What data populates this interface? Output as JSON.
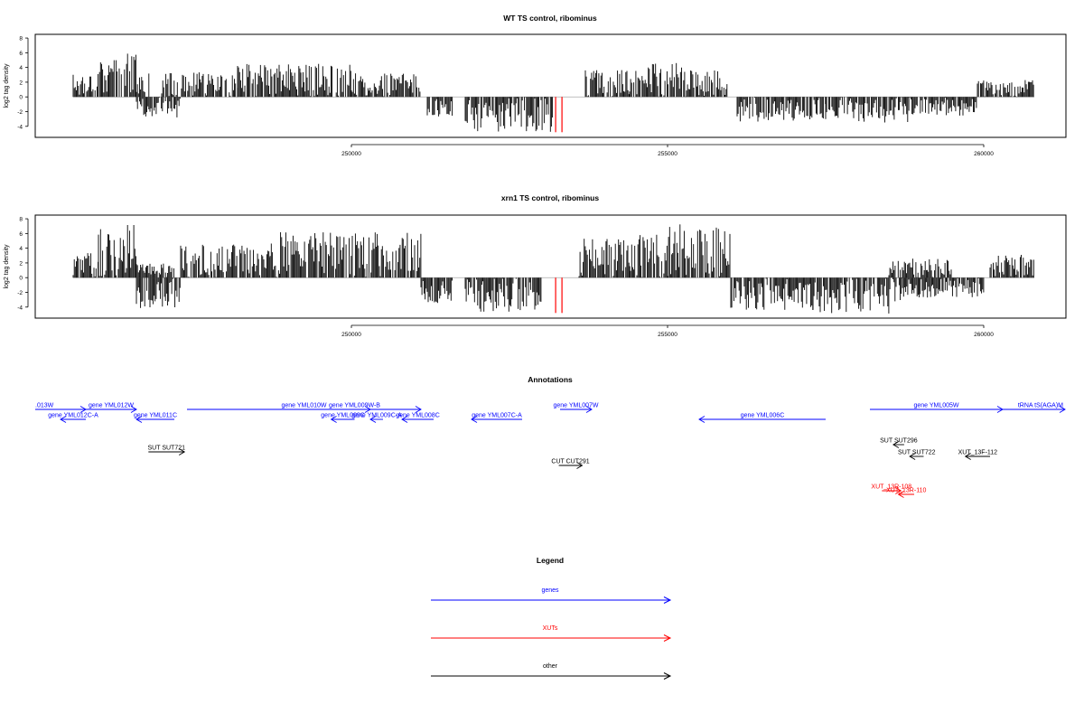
{
  "chart_data": [
    {
      "type": "bar",
      "title": "WT TS control, ribominus",
      "xlabel": "",
      "ylabel": "log2 tag density",
      "xlim": [
        245000,
        261300
      ],
      "ylim": [
        -5.5,
        8.5
      ],
      "x_ticks": [
        250000,
        255000,
        260000
      ],
      "x_tick_labels": [
        "250000",
        "255000",
        "260000"
      ],
      "y_ticks": [
        -4,
        -2,
        0,
        2,
        4,
        6,
        8
      ],
      "y_tick_labels": [
        "-4",
        "-2",
        "0",
        "2",
        "4",
        "6",
        "8"
      ],
      "baseline": 0,
      "plus_strand_regions": [
        {
          "start": 245600,
          "end": 246000,
          "max": 3.6
        },
        {
          "start": 246000,
          "end": 246600,
          "max": 5.9
        },
        {
          "start": 246600,
          "end": 246800,
          "max": 3.5
        },
        {
          "start": 247000,
          "end": 248200,
          "max": 3.4
        },
        {
          "start": 248200,
          "end": 250000,
          "max": 4.5
        },
        {
          "start": 250000,
          "end": 251100,
          "max": 3.2
        },
        {
          "start": 253700,
          "end": 254400,
          "max": 3.8
        },
        {
          "start": 254400,
          "end": 255300,
          "max": 4.8
        },
        {
          "start": 255300,
          "end": 255950,
          "max": 3.6
        },
        {
          "start": 259900,
          "end": 260800,
          "max": 2.3
        }
      ],
      "minus_strand_regions": [
        {
          "start": 246600,
          "end": 247300,
          "max": 2.8
        },
        {
          "start": 251200,
          "end": 251600,
          "max": 2.8
        },
        {
          "start": 251800,
          "end": 253200,
          "max": 4.8
        },
        {
          "start": 256100,
          "end": 257500,
          "max": 3.4
        },
        {
          "start": 257500,
          "end": 258800,
          "max": 3.5
        },
        {
          "start": 258800,
          "end": 259900,
          "max": 2.6
        }
      ],
      "highlighted_bars": [
        {
          "x": 253230,
          "value": -4.8,
          "color": "#ff0000"
        },
        {
          "x": 253330,
          "value": -4.8,
          "color": "#ff0000"
        }
      ],
      "colors": {
        "bars": "#000000",
        "baseline": "#aaaaaa",
        "highlight": "#ff0000"
      }
    },
    {
      "type": "bar",
      "title": "xrn1 TS control, ribominus",
      "xlabel": "",
      "ylabel": "log2 tag density",
      "xlim": [
        245000,
        261300
      ],
      "ylim": [
        -5.5,
        8.5
      ],
      "x_ticks": [
        250000,
        255000,
        260000
      ],
      "x_tick_labels": [
        "250000",
        "255000",
        "260000"
      ],
      "y_ticks": [
        -4,
        -2,
        0,
        2,
        4,
        6,
        8
      ],
      "y_tick_labels": [
        "-4",
        "-2",
        "0",
        "2",
        "4",
        "6",
        "8"
      ],
      "baseline": 0,
      "plus_strand_regions": [
        {
          "start": 245600,
          "end": 246000,
          "max": 3.6
        },
        {
          "start": 246000,
          "end": 246600,
          "max": 7.5
        },
        {
          "start": 246600,
          "end": 247200,
          "max": 2.0
        },
        {
          "start": 247300,
          "end": 248700,
          "max": 4.5
        },
        {
          "start": 248700,
          "end": 251100,
          "max": 6.2
        },
        {
          "start": 253600,
          "end": 254400,
          "max": 5.5
        },
        {
          "start": 254400,
          "end": 255000,
          "max": 6.2
        },
        {
          "start": 255000,
          "end": 256000,
          "max": 7.3
        },
        {
          "start": 258500,
          "end": 259500,
          "max": 2.6
        },
        {
          "start": 260100,
          "end": 260800,
          "max": 3.1
        }
      ],
      "minus_strand_regions": [
        {
          "start": 246600,
          "end": 247300,
          "max": 4.2
        },
        {
          "start": 251100,
          "end": 251600,
          "max": 3.6
        },
        {
          "start": 251800,
          "end": 253000,
          "max": 4.7
        },
        {
          "start": 256000,
          "end": 257300,
          "max": 4.4
        },
        {
          "start": 257300,
          "end": 258700,
          "max": 4.9
        },
        {
          "start": 258700,
          "end": 260000,
          "max": 2.7
        }
      ],
      "highlighted_bars": [
        {
          "x": 253230,
          "value": -4.8,
          "color": "#ff0000"
        },
        {
          "x": 253330,
          "value": -4.8,
          "color": "#ff0000"
        }
      ],
      "colors": {
        "bars": "#000000",
        "baseline": "#aaaaaa",
        "highlight": "#ff0000"
      }
    }
  ],
  "annotations": {
    "title": "Annotations",
    "xlim": [
      245000,
      261300
    ],
    "features": [
      {
        "label": ".013W",
        "start": 245000,
        "end": 245800,
        "strand": "+",
        "row": 0,
        "color": "#0000ff",
        "label_side": "left"
      },
      {
        "label": "gene YML012W",
        "start": 245800,
        "end": 246600,
        "strand": "+",
        "row": 0,
        "color": "#0000ff"
      },
      {
        "label": "gene YML012C-A",
        "start": 245400,
        "end": 245800,
        "strand": "-",
        "row": 1,
        "color": "#0000ff"
      },
      {
        "label": "gene YML011C",
        "start": 246600,
        "end": 247200,
        "strand": "-",
        "row": 1,
        "color": "#0000ff"
      },
      {
        "label": "gene YML010W",
        "start": 247400,
        "end": 251100,
        "strand": "+",
        "row": 0,
        "color": "#0000ff"
      },
      {
        "label": "gene YML009W-B",
        "start": 249800,
        "end": 250300,
        "strand": "+",
        "row": 0,
        "color": "#0000ff"
      },
      {
        "label": "gene YML009C",
        "start": 249680,
        "end": 250050,
        "strand": "-",
        "row": 1,
        "color": "#0000ff"
      },
      {
        "label": "gene YML009C-A",
        "start": 250300,
        "end": 250500,
        "strand": "-",
        "row": 1,
        "color": "#0000ff"
      },
      {
        "label": "gene YML008C",
        "start": 250800,
        "end": 251300,
        "strand": "-",
        "row": 1,
        "color": "#0000ff"
      },
      {
        "label": "gene YML007C-A",
        "start": 251900,
        "end": 252700,
        "strand": "-",
        "row": 1,
        "color": "#0000ff"
      },
      {
        "label": "gene YML007W",
        "start": 253300,
        "end": 253800,
        "strand": "+",
        "row": 0,
        "color": "#0000ff"
      },
      {
        "label": "gene YML006C",
        "start": 255500,
        "end": 257500,
        "strand": "-",
        "row": 1,
        "color": "#0000ff"
      },
      {
        "label": "gene YML005W",
        "start": 258200,
        "end": 260300,
        "strand": "+",
        "row": 0,
        "color": "#0000ff"
      },
      {
        "label": "tRNA tS(AGA)M",
        "start": 259930,
        "end": 261300,
        "strand": "+",
        "row": 0,
        "color": "#0000ff",
        "label_side": "right"
      },
      {
        "label": "SUT SUT296",
        "start": 258570,
        "end": 258640,
        "strand": "-",
        "row": 3,
        "color": "#000000"
      },
      {
        "label": "CUT CUT291",
        "start": 253280,
        "end": 253650,
        "strand": "+",
        "row": 4,
        "color": "#000000"
      },
      {
        "label": "SUT SUT721",
        "start": 246790,
        "end": 247360,
        "strand": "+",
        "row": 6,
        "color": "#000000"
      },
      {
        "label": "SUT SUT722",
        "start": 258830,
        "end": 259050,
        "strand": "-",
        "row": 5,
        "color": "#000000"
      },
      {
        "label": "XUT_13F-112",
        "start": 259710,
        "end": 260100,
        "strand": "-",
        "row": 5,
        "color": "#000000"
      },
      {
        "label": "XUT_13R-108",
        "start": 258390,
        "end": 258690,
        "strand": "+",
        "row": 7,
        "color": "#ff0000"
      },
      {
        "label": "XUT_13R-110",
        "start": 258650,
        "end": 258900,
        "strand": "-",
        "row": 8,
        "color": "#ff0000"
      }
    ]
  },
  "legend": {
    "title": "Legend",
    "items": [
      {
        "label": "genes",
        "color": "#0000ff"
      },
      {
        "label": "XUTs",
        "color": "#ff0000"
      },
      {
        "label": "other",
        "color": "#000000"
      }
    ]
  }
}
